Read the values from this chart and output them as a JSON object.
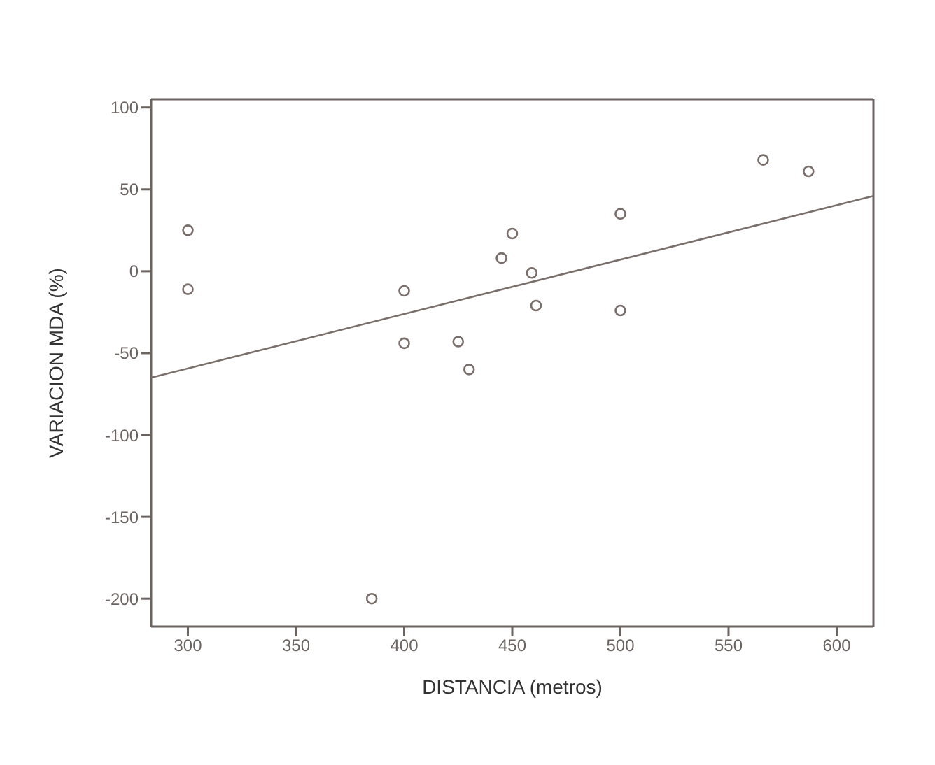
{
  "chart_data": {
    "type": "scatter",
    "xlabel": "DISTANCIA (metros)",
    "ylabel": "VARIACION MDA (%)",
    "xlim": [
      283,
      617
    ],
    "xticks": [
      300,
      350,
      400,
      450,
      500,
      550,
      600
    ],
    "ylim": [
      -217,
      105
    ],
    "yticks": [
      -200,
      -150,
      -100,
      -50,
      0,
      50,
      100
    ],
    "grid": false,
    "legend": false,
    "marker": "circle",
    "series": [
      {
        "color": "#7a6e6a",
        "x": [
          300,
          300,
          385,
          400,
          400,
          425,
          430,
          445,
          450,
          459,
          461,
          500,
          500,
          566,
          587
        ],
        "values": [
          25,
          -11,
          -200,
          -12,
          -44,
          -43,
          -60,
          8,
          23,
          -1,
          -21,
          35,
          -24,
          68,
          61
        ]
      },
      {
        "type": "line",
        "color": "#7a6e6a",
        "x": [
          283,
          617
        ],
        "values": [
          -65,
          46
        ],
        "marker": "none",
        "line_style": "solid"
      }
    ]
  }
}
